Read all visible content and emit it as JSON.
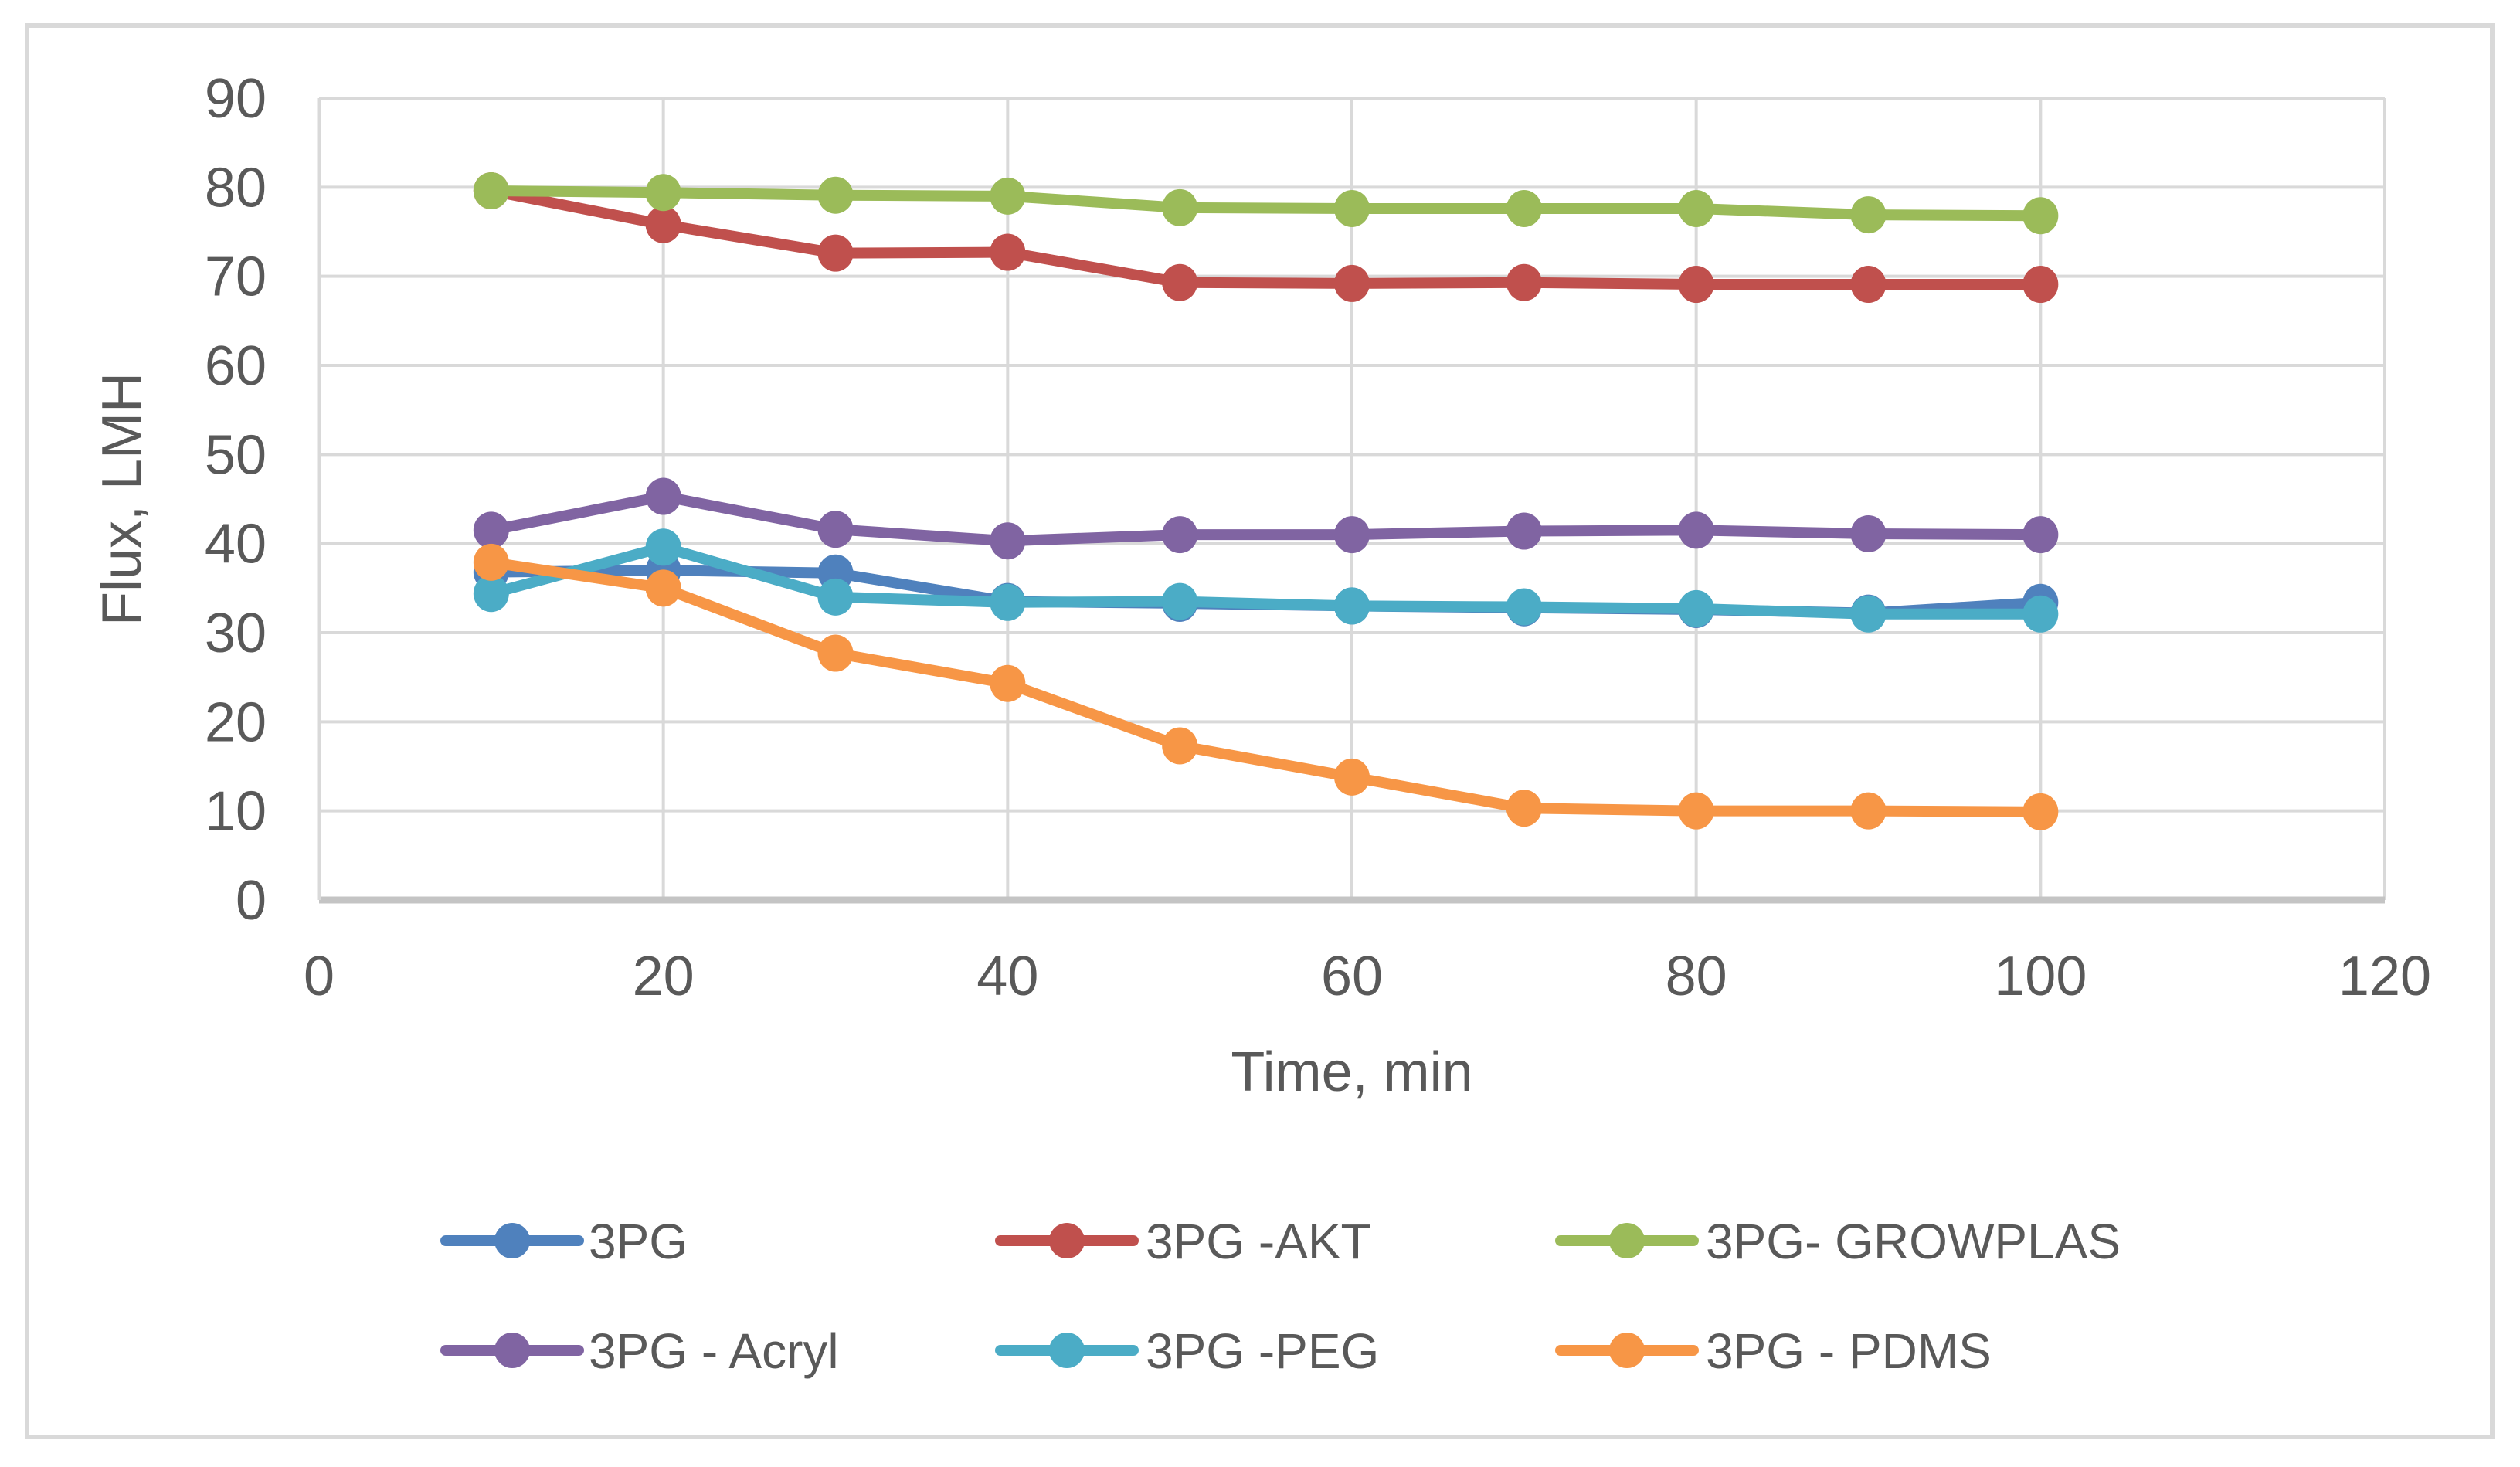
{
  "chart_data": {
    "type": "line",
    "title": "",
    "xlabel": "Time, min",
    "ylabel": "Flux, LMH",
    "xlim": [
      0,
      120
    ],
    "ylim": [
      0,
      90
    ],
    "xticks": [
      0,
      20,
      40,
      60,
      80,
      100,
      120
    ],
    "yticks": [
      0,
      10,
      20,
      30,
      40,
      50,
      60,
      70,
      80,
      90
    ],
    "grid": true,
    "legend_position": "bottom",
    "x": [
      10,
      20,
      30,
      40,
      50,
      60,
      70,
      80,
      90,
      100
    ],
    "series": [
      {
        "name": "3PG",
        "color": "#4F81BD",
        "values": [
          36.8,
          37.0,
          36.7,
          33.5,
          33.3,
          33.0,
          32.8,
          32.6,
          32.2,
          33.4
        ]
      },
      {
        "name": "3PG -AKT",
        "color": "#C0504D",
        "values": [
          79.6,
          75.8,
          72.6,
          72.7,
          69.3,
          69.2,
          69.3,
          69.1,
          69.1,
          69.1
        ]
      },
      {
        "name": "3PG- GROWPLAS",
        "color": "#9BBB59",
        "values": [
          79.6,
          79.4,
          79.1,
          79.0,
          77.7,
          77.6,
          77.6,
          77.6,
          76.9,
          76.8
        ]
      },
      {
        "name": "3PG - Acryl",
        "color": "#8064A2",
        "values": [
          41.5,
          45.3,
          41.6,
          40.3,
          41.0,
          41.0,
          41.4,
          41.5,
          41.1,
          41.0
        ]
      },
      {
        "name": "3PG -PEG",
        "color": "#4BACC6",
        "values": [
          34.4,
          39.6,
          34.0,
          33.4,
          33.5,
          33.0,
          32.9,
          32.7,
          32.1,
          32.1
        ]
      },
      {
        "name": "3PG - PDMS",
        "color": "#F79646",
        "values": [
          37.9,
          35.0,
          27.7,
          24.3,
          17.3,
          13.8,
          10.3,
          10.0,
          10.0,
          9.9
        ]
      }
    ],
    "style_colors": {
      "gridline": "#D9D9D9",
      "axis_line": "#C4C4C4",
      "text": "#595959",
      "border": "#D9D9D9",
      "background": "#FFFFFF"
    }
  }
}
